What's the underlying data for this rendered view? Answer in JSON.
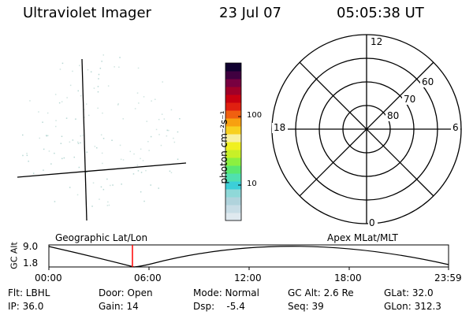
{
  "header": {
    "instrument": "Ultraviolet Imager",
    "date": "23 Jul 07",
    "time": "05:05:38 UT"
  },
  "colorbar": {
    "unit_label": "photon cm⁻²s⁻¹",
    "ticks": [
      "100",
      "10"
    ],
    "colors": [
      "#dfe9ef",
      "#c8dde6",
      "#b0d3dc",
      "#8fd8d8",
      "#3ccfd8",
      "#50e0b0",
      "#5ae870",
      "#8cf040",
      "#c8f028",
      "#f0f020",
      "#f8f0a0",
      "#f8d020",
      "#f8a010",
      "#f06010",
      "#e02010",
      "#c80010",
      "#a00028",
      "#780040",
      "#400040",
      "#100030"
    ]
  },
  "polar_plot": {
    "mlt_labels": {
      "top": "12",
      "left": "18",
      "right": "6",
      "bottom": "0"
    },
    "lat_labels": [
      "60",
      "70",
      "80"
    ]
  },
  "timeline": {
    "left_label": "Geographic Lat/Lon",
    "right_label": "Apex MLat/MLT",
    "ylabel": "GC Alt",
    "ytick_top": "9.0",
    "ytick_bottom": "1.8",
    "time_ticks": [
      "00:00",
      "06:00",
      "12:00",
      "18:00",
      "23:59"
    ],
    "marker_color": "#ff0000"
  },
  "footer": {
    "flt": "Flt: LBHL",
    "ip": "IP: 36.0",
    "door": "Door: Open",
    "gain": "Gain: 14",
    "mode": "Mode: Normal",
    "dsp": "Dsp:    -5.4",
    "gc_alt": "GC Alt: 2.6 Re",
    "seq": "Seq: 39",
    "glat": "GLat: 32.0",
    "glon": "GLon: 312.3"
  }
}
